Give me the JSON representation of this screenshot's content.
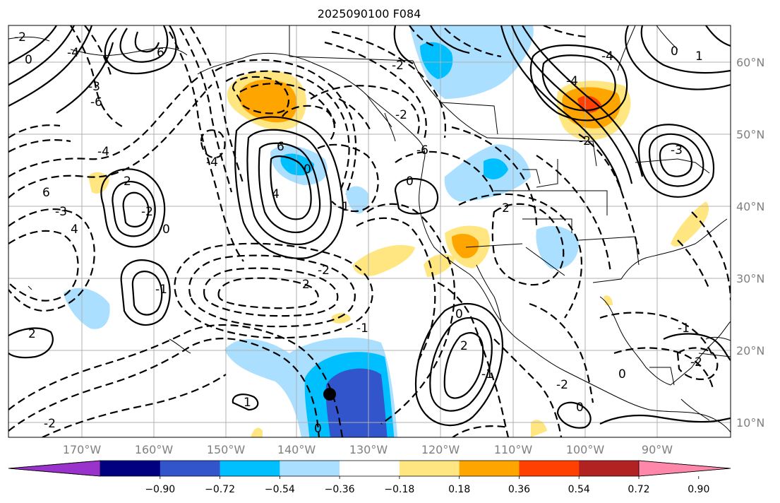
{
  "figure": {
    "title": "2025090100 F084"
  },
  "map": {
    "lat_labels": [
      "60°N",
      "50°N",
      "40°N",
      "30°N",
      "20°N",
      "10°N"
    ],
    "lon_labels": [
      "170°W",
      "160°W",
      "150°W",
      "140°W",
      "130°W",
      "120°W",
      "110°W",
      "100°W",
      "90°W"
    ],
    "contour_labels": [
      "0",
      "-2",
      "-4",
      "6",
      "-3",
      "-6",
      "0",
      "2",
      "-2",
      "-1",
      "-4",
      "6",
      "-3",
      "4",
      "2",
      "-2",
      "-4",
      "6",
      "4",
      "0",
      "-1",
      "2",
      "-2",
      "-1",
      "0",
      "-2",
      "1",
      "0",
      "-2",
      "-6",
      "2",
      "-1",
      "-2",
      "0",
      "-4",
      "0",
      "-1",
      "-2",
      "0",
      "-3",
      "-4",
      "-2",
      "1",
      "-2",
      "0"
    ],
    "colors": {
      "gridline": "#b0b0b0",
      "coastline": "#000000",
      "contour": "#000000",
      "storm_marker": "#000000"
    }
  },
  "colorbar": {
    "tick_labels": [
      "−0.90",
      "−0.72",
      "−0.54",
      "−0.36",
      "−0.18",
      "0.18",
      "0.36",
      "0.54",
      "0.72",
      "0.90"
    ],
    "levels": [
      -0.9,
      -0.72,
      -0.54,
      -0.36,
      -0.18,
      0.18,
      0.36,
      0.54,
      0.72,
      0.9
    ],
    "colors": [
      "#9933cc",
      "#000080",
      "#3355cc",
      "#00bfff",
      "#aadfff",
      "#ffffff",
      "#ffe680",
      "#ffa500",
      "#ff4000",
      "#b22222",
      "#ff88aa"
    ]
  }
}
